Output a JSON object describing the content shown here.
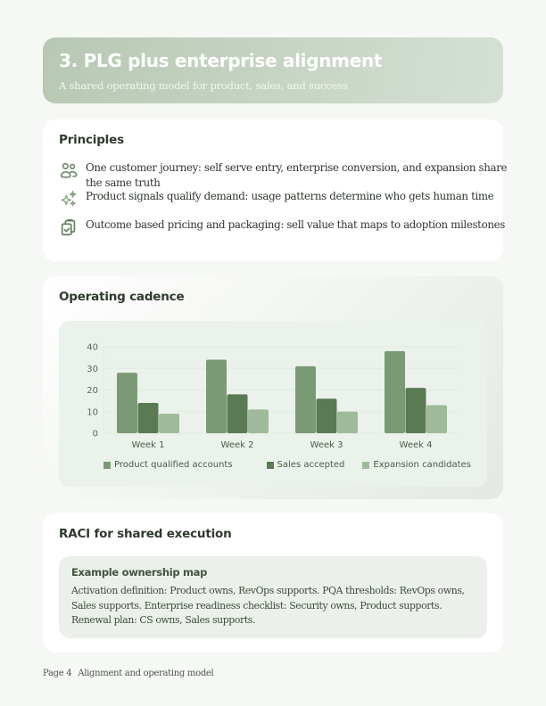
{
  "header": {
    "title": "3. PLG plus enterprise alignment",
    "subtitle": "A shared operating model for product, sales, and success"
  },
  "principles": {
    "title": "Principles",
    "items": [
      {
        "icon": "users-icon",
        "text": "One customer journey: self serve entry, enterprise conversion, and expansion share the same truth"
      },
      {
        "icon": "sparkles-icon",
        "text": "Product signals qualify demand: usage patterns determine who gets human time"
      },
      {
        "icon": "clipboard-check-icon",
        "text": "Outcome based pricing and packaging: sell value that maps to adoption milestones"
      }
    ]
  },
  "cadence": {
    "title": "Operating cadence"
  },
  "chart_data": {
    "type": "bar",
    "title": "Operating cadence",
    "categories": [
      "Week 1",
      "Week 2",
      "Week 3",
      "Week 4"
    ],
    "series": [
      {
        "name": "Product qualified accounts",
        "color": "#7a9a76",
        "values": [
          28,
          34,
          31,
          38
        ]
      },
      {
        "name": "Sales accepted",
        "color": "#5a7a54",
        "values": [
          14,
          18,
          16,
          21
        ]
      },
      {
        "name": "Expansion candidates",
        "color": "#9fba9b",
        "values": [
          9,
          11,
          10,
          13
        ]
      }
    ],
    "yticks": [
      0,
      10,
      20,
      30,
      40
    ],
    "ylim": [
      0,
      40
    ],
    "xlabel": "",
    "ylabel": "",
    "grid": true,
    "legend_position": "bottom"
  },
  "raci": {
    "title": "RACI for shared execution",
    "box_title": "Example ownership map",
    "box_text": "Activation definition: Product owns, RevOps supports. PQA thresholds: RevOps owns, Sales supports. Enterprise readiness checklist: Security owns, Product supports. Renewal plan: CS owns, Sales supports."
  },
  "footer": {
    "page": "Page 4",
    "section": "Alignment and operating model"
  },
  "colors": {
    "accent": "#5a7a54",
    "icon": "#6d8c68",
    "page_bg": "#f6f8f5"
  }
}
